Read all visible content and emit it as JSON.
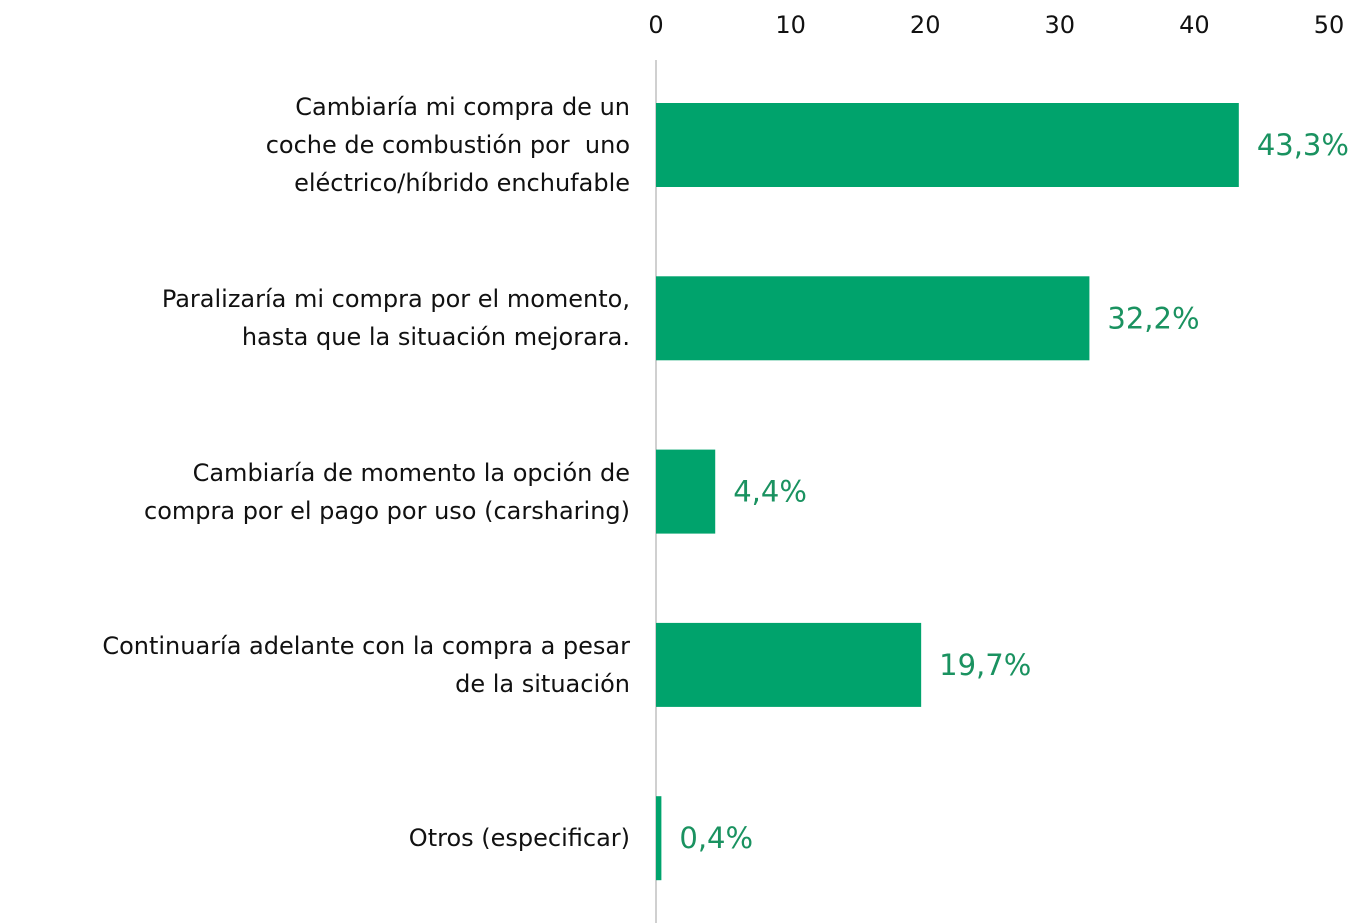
{
  "chart_data": {
    "type": "bar",
    "orientation": "horizontal",
    "categories": [
      "Cambiaría mi compra de un\ncoche de combustión por  uno\neléctrico/híbrido enchufable",
      "Paralizaría mi compra por el momento,\nhasta que la situación mejorara.",
      "Cambiaría de momento la opción de\ncompra por el pago por uso (carsharing)",
      "Continuaría adelante con la compra a pesar\nde la situación",
      "Otros (especificar)"
    ],
    "values": [
      43.3,
      32.2,
      4.4,
      19.7,
      0.4
    ],
    "value_labels": [
      "43,3%",
      "32,2%",
      "4,4%",
      "19,7%",
      "0,4%"
    ],
    "color": "#00a36c",
    "label_color": "#1a9260",
    "xlim": [
      0,
      50
    ],
    "xticks": [
      0,
      10,
      20,
      30,
      40,
      50
    ],
    "grid": false
  }
}
